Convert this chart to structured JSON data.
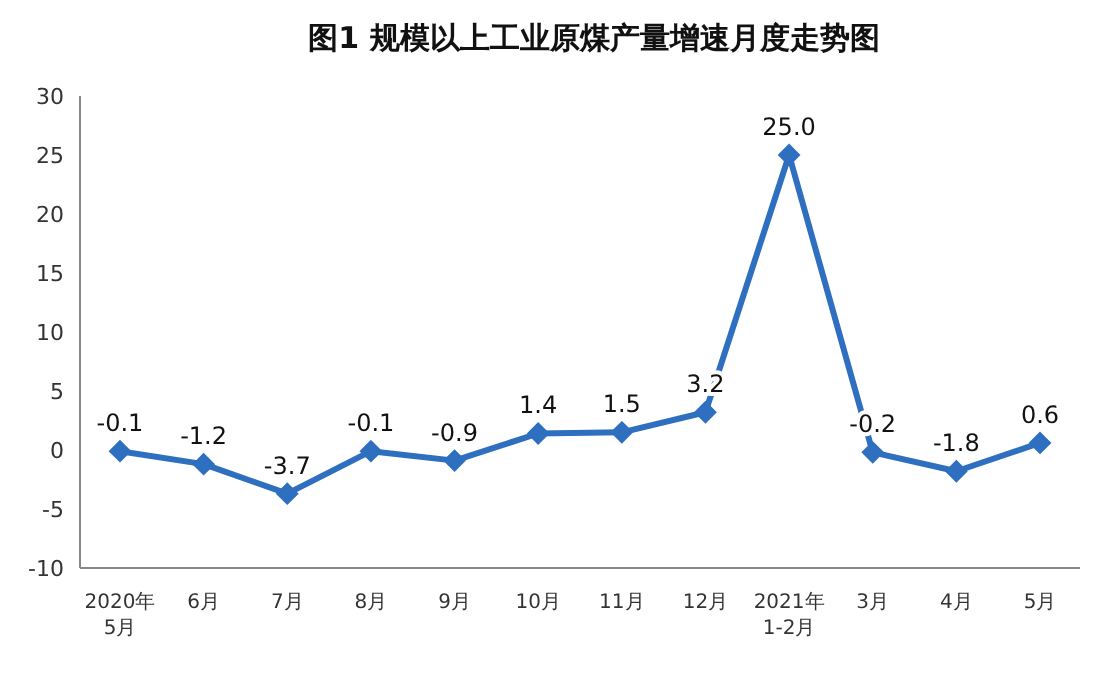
{
  "chart_data": {
    "type": "line",
    "title": "图1  规模以上工业原煤产量增速月度走势图",
    "categories": [
      "2020年\n5月",
      "6月",
      "7月",
      "8月",
      "9月",
      "10月",
      "11月",
      "12月",
      "2021年\n1-2月",
      "3月",
      "4月",
      "5月"
    ],
    "series": [
      {
        "color": "#2e6fbf",
        "values": [
          -0.1,
          -1.2,
          -3.7,
          -0.1,
          -0.9,
          1.4,
          1.5,
          3.2,
          25.0,
          -0.2,
          -1.8,
          0.6
        ],
        "value_labels": [
          "-0.1",
          "-1.2",
          "-3.7",
          "-0.1",
          "-0.9",
          "1.4",
          "1.5",
          "3.2",
          "25.0",
          "-0.2",
          "-1.8",
          "0.6"
        ]
      }
    ],
    "ylim": [
      -10,
      30
    ],
    "yticks": [
      -10,
      -5,
      0,
      5,
      10,
      15,
      20,
      25,
      30
    ],
    "marker": "diamond",
    "line_style": "solid"
  }
}
